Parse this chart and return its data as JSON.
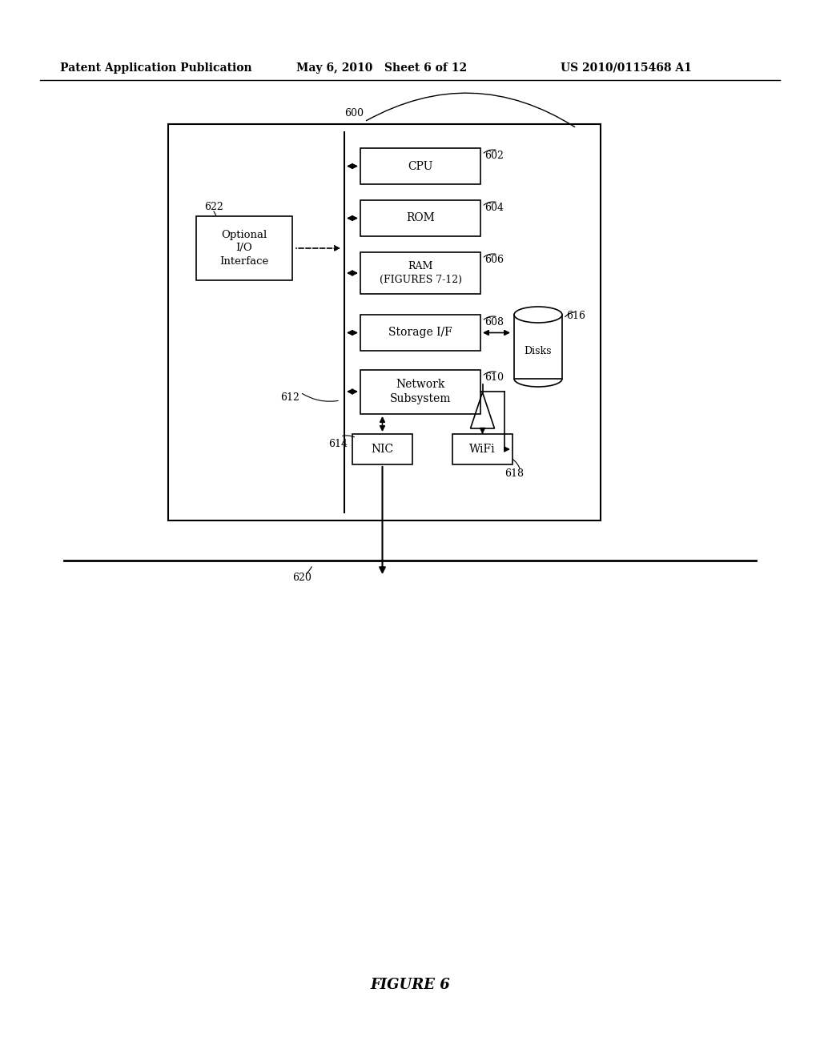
{
  "header_left": "Patent Application Publication",
  "header_mid": "May 6, 2010   Sheet 6 of 12",
  "header_right": "US 2010/0115468 A1",
  "figure_label": "FIGURE 6",
  "bg_color": "#ffffff",
  "box_color": "#ffffff",
  "box_edge": "#000000",
  "labels": {
    "600": "600",
    "602": "602",
    "604": "604",
    "606": "606",
    "608": "608",
    "610": "610",
    "612": "612",
    "614": "614",
    "616": "616",
    "618": "618",
    "620": "620",
    "622": "622"
  },
  "box_texts": {
    "cpu": "CPU",
    "rom": "ROM",
    "ram": "RAM\n(FIGURES 7-12)",
    "storage": "Storage I/F",
    "network": "Network\nSubsystem",
    "nic": "NIC",
    "wifi": "WiFi",
    "optional_io": "Optional\nI/O\nInterface",
    "disks": "Disks"
  }
}
